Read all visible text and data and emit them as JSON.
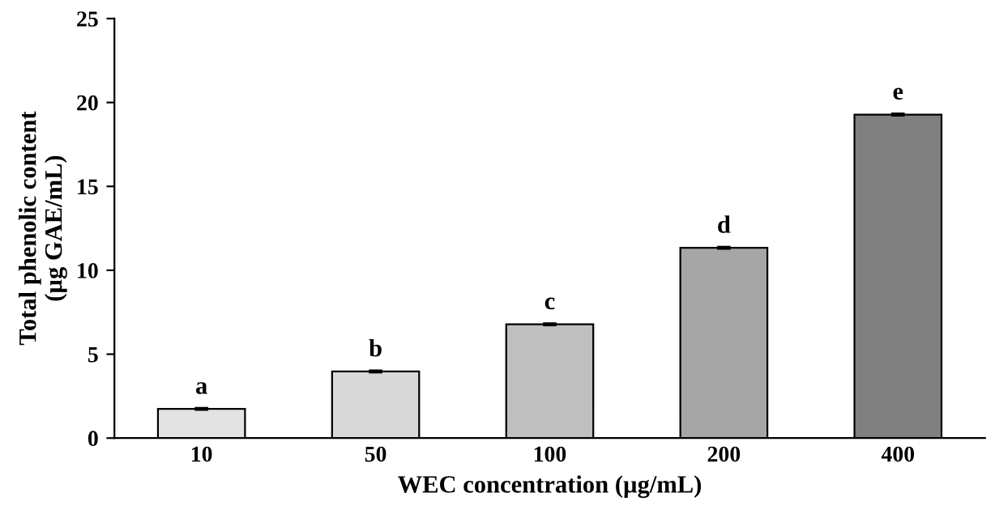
{
  "chart_data": {
    "type": "bar",
    "xlabel": "WEC concentration (µg/mL)",
    "ylabel": "Total phenolic content\n(µg GAE/mL)",
    "categories": [
      "10",
      "50",
      "100",
      "200",
      "400"
    ],
    "values": [
      1.74,
      3.97,
      6.78,
      11.34,
      19.28
    ],
    "errors": [
      0.05,
      0.05,
      0.05,
      0.05,
      0.05
    ],
    "colors": [
      "#e3e3e3",
      "#d9d9d9",
      "#bfbfbf",
      "#a6a6a6",
      "#808080"
    ],
    "ylim": [
      0,
      25
    ],
    "yticks": [
      0,
      5,
      10,
      15,
      20,
      25
    ],
    "grid": false,
    "annotations": [
      {
        "text": "a",
        "x": "10",
        "y": 1.74
      },
      {
        "text": "b",
        "x": "50",
        "y": 3.97
      },
      {
        "text": "c",
        "x": "100",
        "y": 6.78
      },
      {
        "text": "d",
        "x": "200",
        "y": 11.34
      },
      {
        "text": "e",
        "x": "400",
        "y": 19.28
      }
    ]
  }
}
